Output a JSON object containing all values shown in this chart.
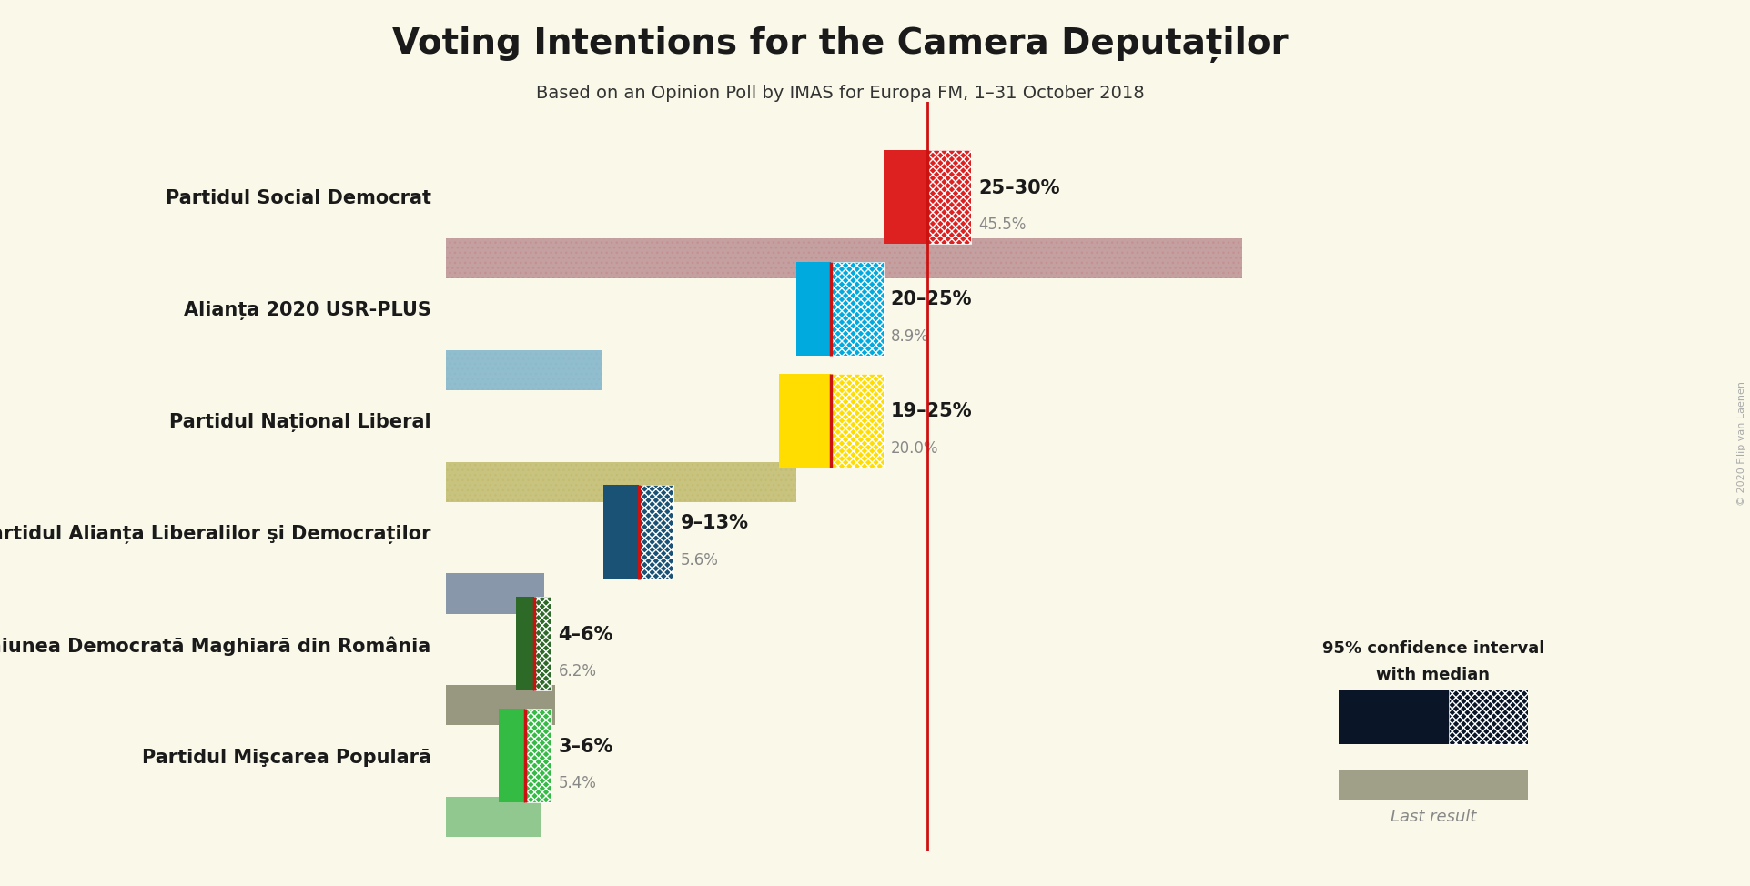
{
  "title": "Voting Intentions for the Camera Deputaților",
  "subtitle": "Based on an Opinion Poll by IMAS for Europa FM, 1–31 October 2018",
  "background_color": "#faf8e8",
  "parties": [
    {
      "name": "Partidul Social Democrat",
      "ci_low": 25,
      "ci_high": 30,
      "median": 27.5,
      "last_result": 45.5,
      "color": "#dd2020",
      "last_color": "#c4a0a0",
      "dot_color": "#c49090",
      "label": "25–30%",
      "last_label": "45.5%"
    },
    {
      "name": "Alianța 2020 USR-PLUS",
      "ci_low": 20,
      "ci_high": 25,
      "median": 22,
      "last_result": 8.9,
      "color": "#00aade",
      "last_color": "#90bece",
      "dot_color": "#90b8cc",
      "label": "20–25%",
      "last_label": "8.9%"
    },
    {
      "name": "Partidul Național Liberal",
      "ci_low": 19,
      "ci_high": 25,
      "median": 22,
      "last_result": 20.0,
      "color": "#ffdd00",
      "last_color": "#c8c480",
      "dot_color": "#c4bc70",
      "label": "19–25%",
      "last_label": "20.0%"
    },
    {
      "name": "Partidul Alianța Liberalilor şi Democraților",
      "ci_low": 9,
      "ci_high": 13,
      "median": 11,
      "last_result": 5.6,
      "color": "#1a5276",
      "last_color": "#8898aa",
      "dot_color": "#8898aa",
      "label": "9–13%",
      "last_label": "5.6%"
    },
    {
      "name": "Uniunea Democrată Maghiară din România",
      "ci_low": 4,
      "ci_high": 6,
      "median": 5,
      "last_result": 6.2,
      "color": "#2d6a27",
      "last_color": "#989880",
      "dot_color": "#989880",
      "label": "4–6%",
      "last_label": "6.2%"
    },
    {
      "name": "Partidul Mişcarea Populară",
      "ci_low": 3,
      "ci_high": 6,
      "median": 4.5,
      "last_result": 5.4,
      "color": "#33bb44",
      "last_color": "#90c890",
      "dot_color": "#90c890",
      "label": "3–6%",
      "last_label": "5.4%"
    }
  ],
  "xlim_max": 50,
  "median_line_color": "#cc1111",
  "copyright": "© 2020 Filip van Laenen",
  "legend_text1": "95% confidence interval",
  "legend_text2": "with median",
  "legend_last": "Last result"
}
